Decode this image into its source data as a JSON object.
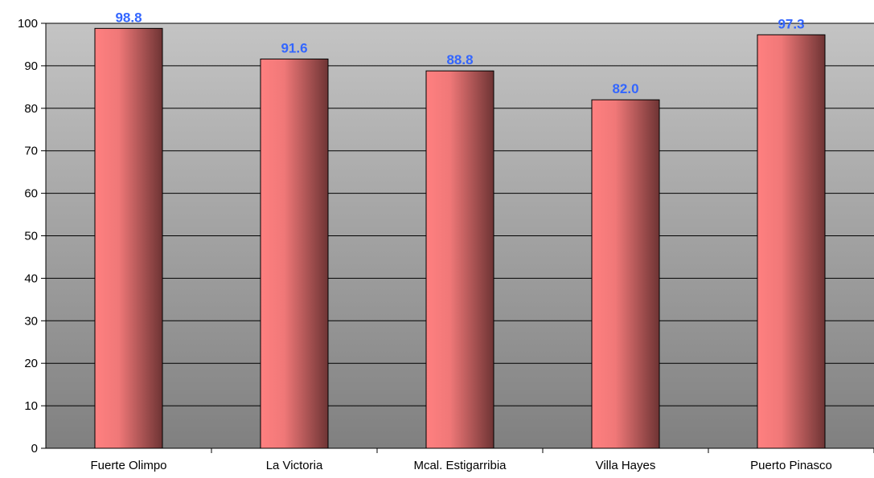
{
  "chart_data": {
    "type": "bar",
    "categories": [
      "Fuerte Olimpo",
      "La Victoria",
      "Mcal. Estigarribia",
      "Villa Hayes",
      "Puerto Pinasco"
    ],
    "values": [
      98.8,
      91.6,
      88.8,
      82.0,
      97.3
    ],
    "data_labels": [
      "98.8",
      "91.6",
      "88.8",
      "82.0",
      "97.3"
    ],
    "ylim": [
      0,
      100
    ],
    "yticks": [
      0,
      10,
      20,
      30,
      40,
      50,
      60,
      70,
      80,
      90,
      100
    ],
    "ytick_labels": [
      "0",
      "10",
      "20",
      "30",
      "40",
      "50",
      "60",
      "70",
      "80",
      "90",
      "100"
    ],
    "grid": true,
    "legend": "none",
    "colors": {
      "bar_light": "#ff8080",
      "bar_dark": "#6e3434",
      "data_label": "#3366ff",
      "plot_top": "#c4c4c4",
      "plot_bottom": "#808080",
      "gridline": "#000000"
    }
  }
}
